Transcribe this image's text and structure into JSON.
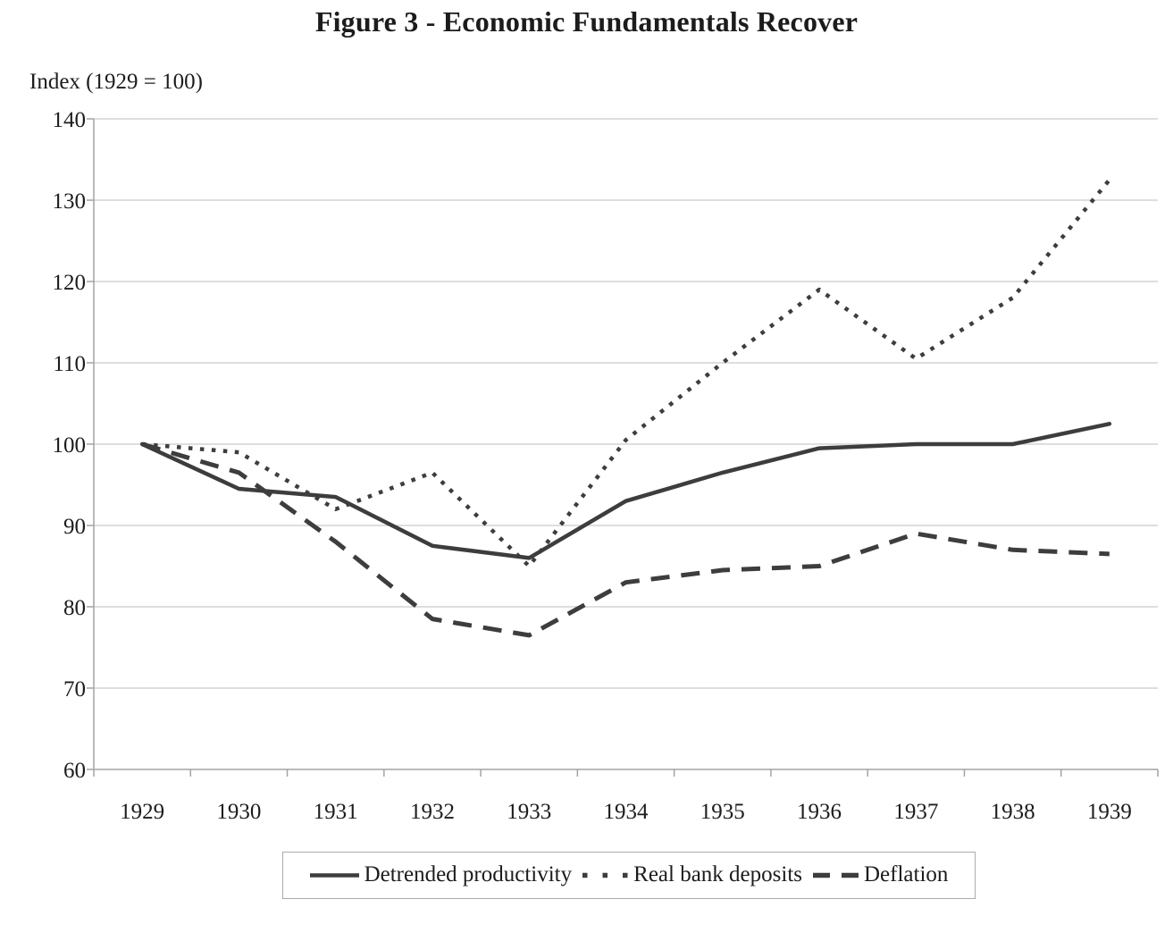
{
  "chart_data": {
    "type": "line",
    "title": "Figure 3 - Economic Fundamentals Recover",
    "ylabel": "Index (1929 = 100)",
    "xlabel": "",
    "x": [
      "1929",
      "1930",
      "1931",
      "1932",
      "1933",
      "1934",
      "1935",
      "1936",
      "1937",
      "1938",
      "1939"
    ],
    "yticks": [
      "60",
      "70",
      "80",
      "90",
      "100",
      "110",
      "120",
      "130",
      "140"
    ],
    "ylim": [
      60,
      140
    ],
    "ytick_step": 10,
    "grid": true,
    "legend_position": "bottom",
    "series": [
      {
        "name": "Detrended productivity",
        "line_style": "solid",
        "values": [
          100,
          94.5,
          93.5,
          87.5,
          86,
          93,
          96.5,
          99.5,
          100,
          100,
          102.5
        ]
      },
      {
        "name": "Real bank deposits",
        "line_style": "dotted",
        "values": [
          100,
          99,
          92,
          96.5,
          85,
          100.5,
          110,
          119,
          110.5,
          118,
          132.5
        ]
      },
      {
        "name": "Deflation",
        "line_style": "dashed",
        "values": [
          100,
          96.5,
          88,
          78.5,
          76.5,
          83,
          84.5,
          85,
          89,
          87,
          86.5
        ]
      }
    ],
    "colors": {
      "line": "#3d3d3d",
      "grid": "#c9c9c9",
      "axis": "#a3a3a3",
      "text": "#1c1c1c",
      "background": "#ffffff"
    }
  }
}
